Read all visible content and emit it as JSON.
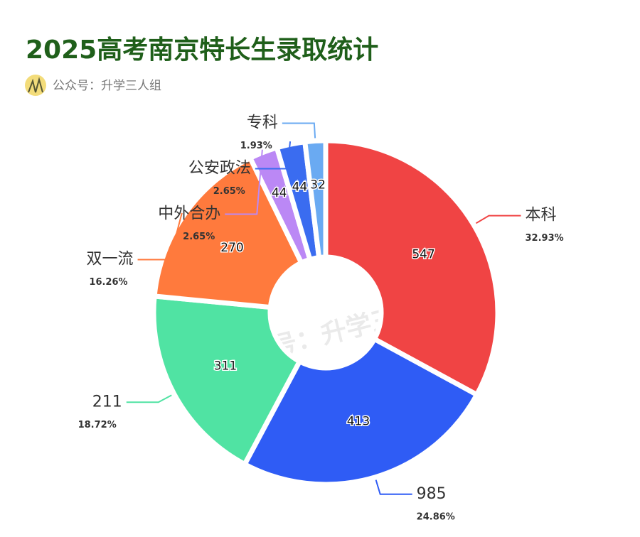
{
  "chart_data": {
    "type": "donut",
    "title": "2025高考南京特长生录取统计",
    "subtitle": "公众号：升学三人组",
    "watermark": "公众号：升学三人组",
    "categories": [
      "本科",
      "985",
      "211",
      "双一流",
      "中外合办",
      "公安政法",
      "专科"
    ],
    "values": [
      547,
      413,
      311,
      270,
      44,
      44,
      32
    ],
    "percent_labels": [
      "32.93%",
      "24.86%",
      "18.72%",
      "16.26%",
      "2.65%",
      "2.65%",
      "1.93%"
    ],
    "colors": [
      "#f04444",
      "#2f5cf5",
      "#50e3a3",
      "#ff7a3d",
      "#bb88f5",
      "#3a6cf0",
      "#6aaaf2"
    ]
  }
}
